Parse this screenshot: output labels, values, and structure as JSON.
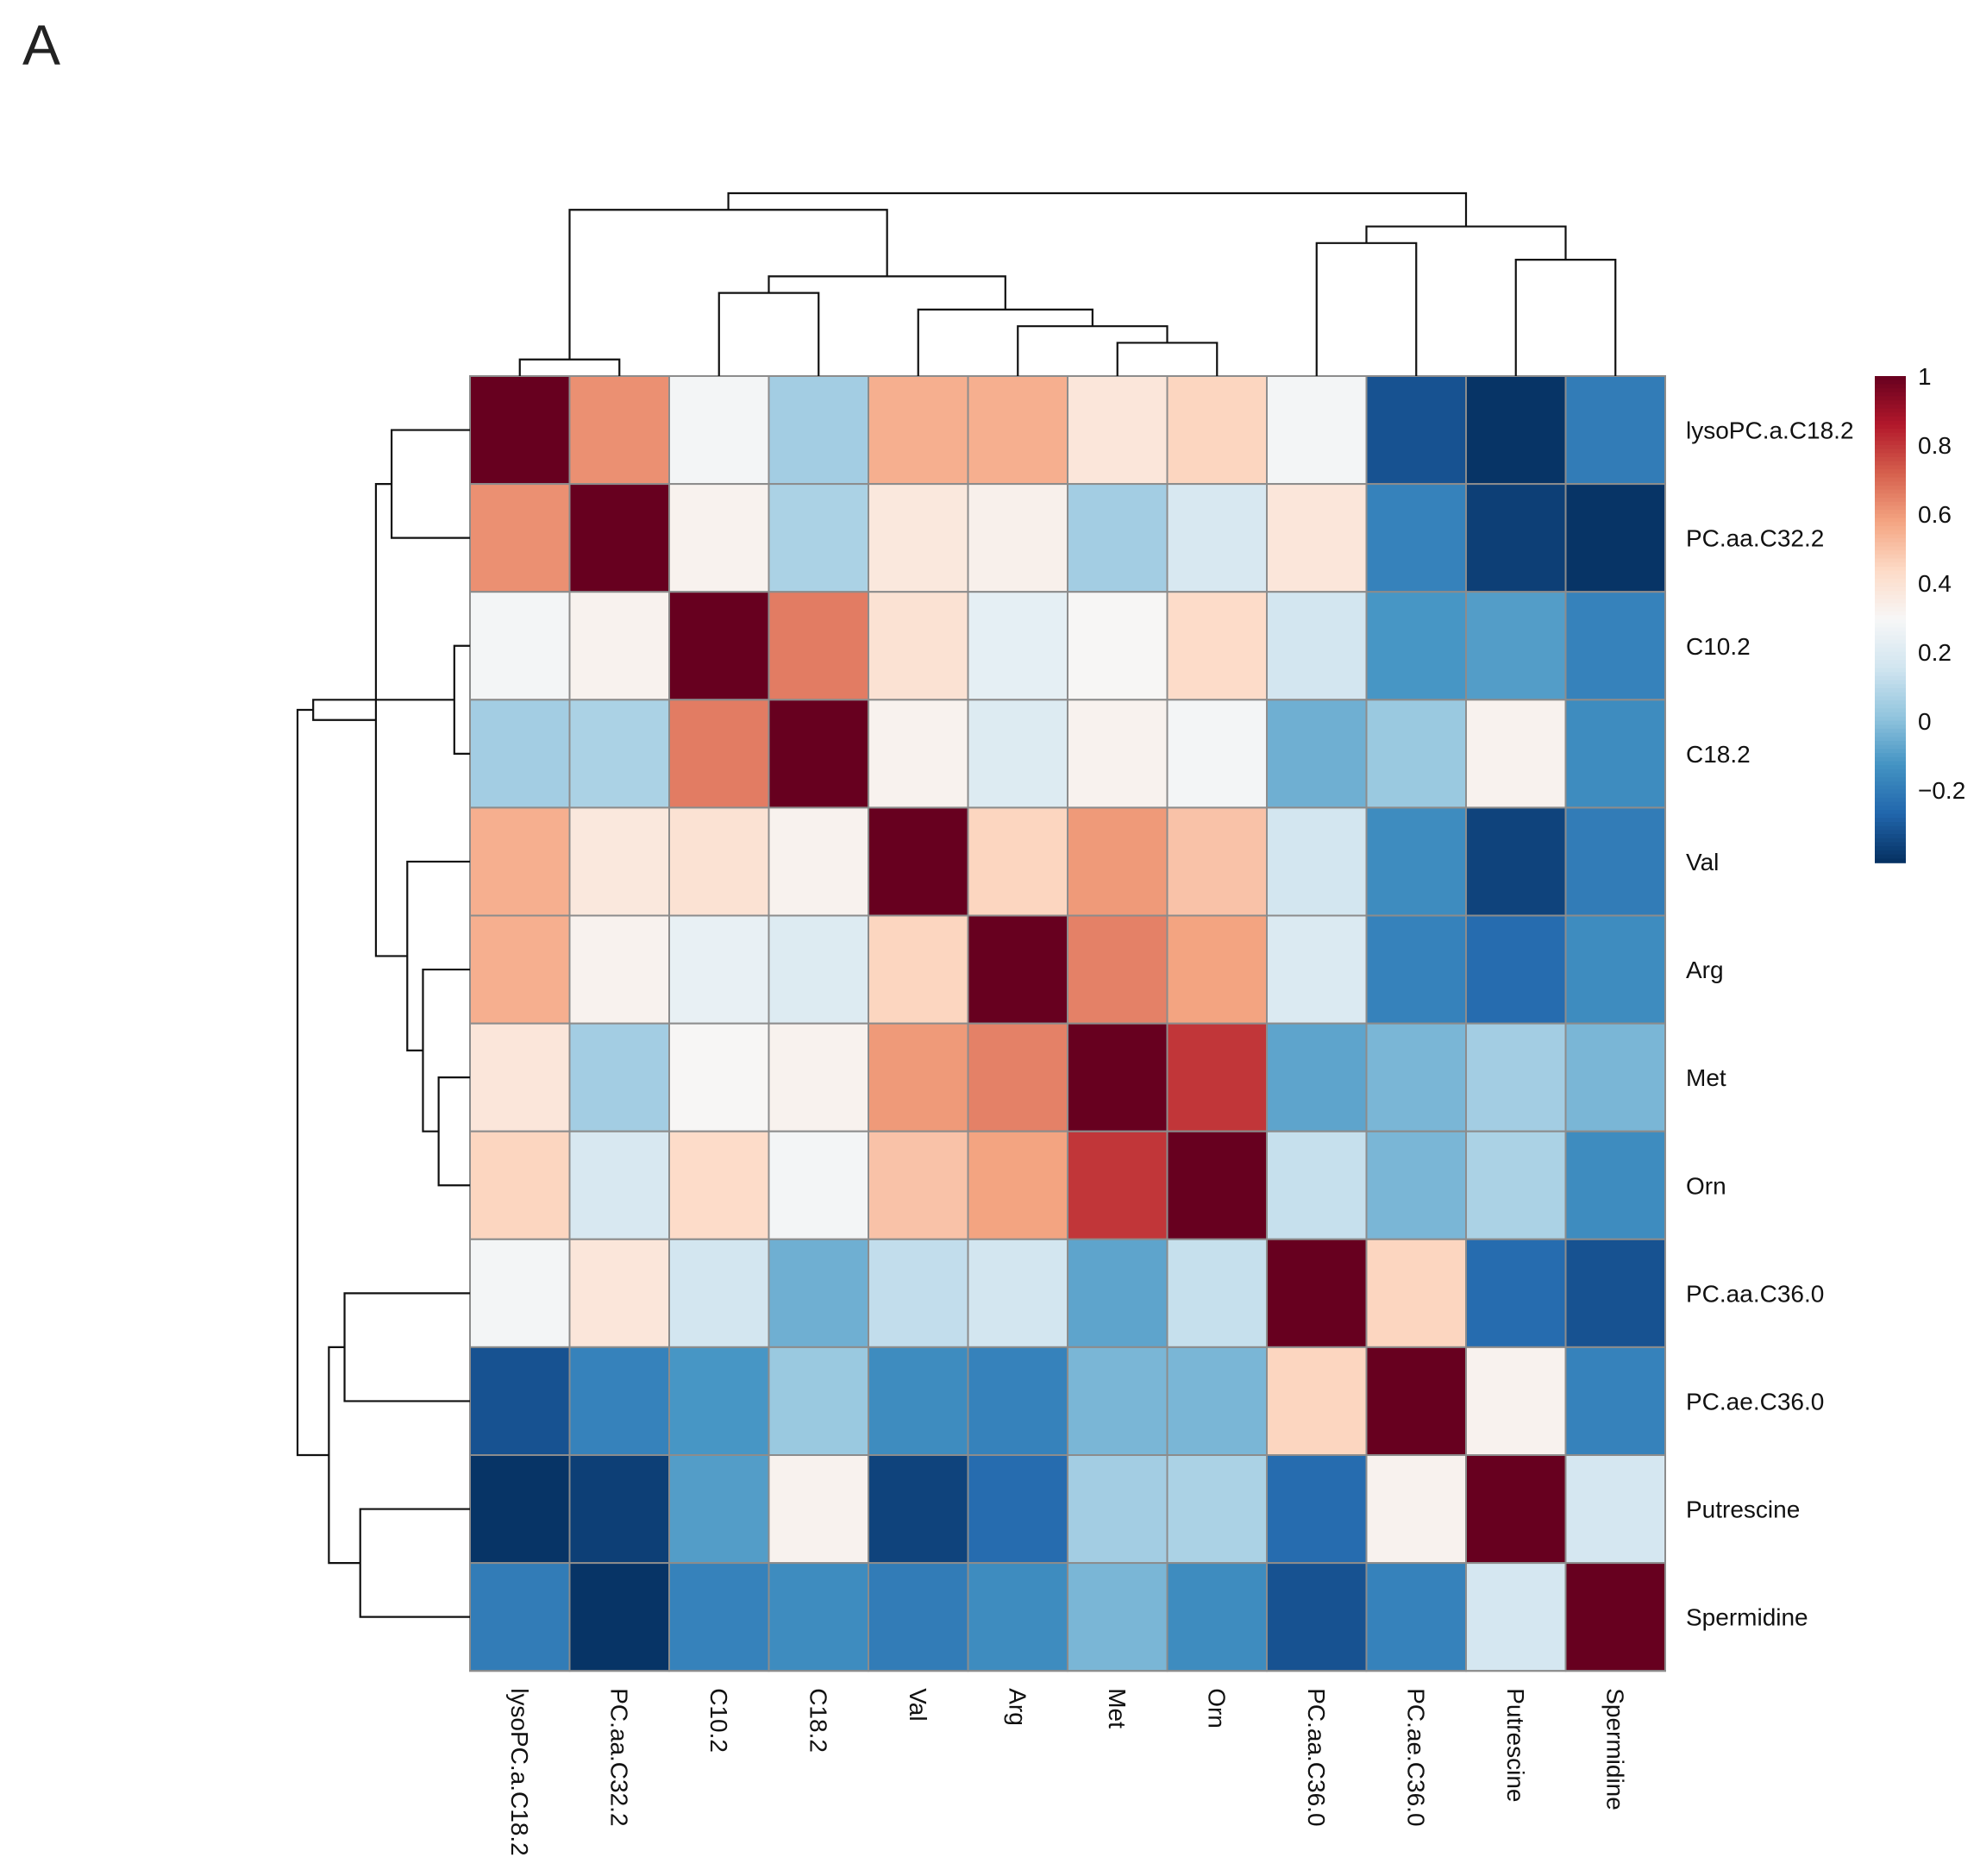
{
  "panel_label": "A",
  "chart_data": {
    "type": "heatmap",
    "title": "",
    "row_labels": [
      "lysoPC.a.C18.2",
      "PC.aa.C32.2",
      "C10.2",
      "C18.2",
      "Val",
      "Arg",
      "Met",
      "Orn",
      "PC.aa.C36.0",
      "PC.ae.C36.0",
      "Putrescine",
      "Spermidine"
    ],
    "col_labels": [
      "lysoPC.a.C18.2",
      "PC.aa.C32.2",
      "C10.2",
      "C18.2",
      "Val",
      "Arg",
      "Met",
      "Orn",
      "PC.aa.C36.0",
      "PC.ae.C36.0",
      "Putrescine",
      "Spermidine"
    ],
    "values": [
      [
        1.0,
        0.62,
        0.28,
        0.05,
        0.55,
        0.55,
        0.38,
        0.45,
        0.28,
        -0.32,
        -0.4,
        -0.2
      ],
      [
        0.62,
        1.0,
        0.32,
        0.07,
        0.37,
        0.33,
        0.05,
        0.18,
        0.38,
        -0.18,
        -0.37,
        -0.4
      ],
      [
        0.28,
        0.32,
        1.0,
        0.66,
        0.4,
        0.23,
        0.3,
        0.43,
        0.16,
        -0.12,
        -0.1,
        -0.18
      ],
      [
        0.05,
        0.07,
        0.66,
        1.0,
        0.32,
        0.2,
        0.32,
        0.28,
        -0.05,
        0.03,
        0.32,
        -0.15
      ],
      [
        0.55,
        0.37,
        0.4,
        0.32,
        1.0,
        0.45,
        0.6,
        0.5,
        0.16,
        -0.15,
        -0.36,
        -0.2
      ],
      [
        0.55,
        0.32,
        0.24,
        0.2,
        0.45,
        1.0,
        0.65,
        0.58,
        0.19,
        -0.18,
        -0.25,
        -0.15
      ],
      [
        0.38,
        0.05,
        0.3,
        0.32,
        0.6,
        0.65,
        1.0,
        0.8,
        -0.08,
        -0.03,
        0.05,
        -0.03
      ],
      [
        0.45,
        0.18,
        0.43,
        0.28,
        0.5,
        0.58,
        0.8,
        1.0,
        0.13,
        -0.03,
        0.07,
        -0.15
      ],
      [
        0.28,
        0.38,
        0.16,
        -0.05,
        0.12,
        0.16,
        -0.08,
        0.13,
        1.0,
        0.45,
        -0.25,
        -0.32
      ],
      [
        -0.32,
        -0.18,
        -0.12,
        0.03,
        -0.15,
        -0.18,
        -0.03,
        -0.03,
        0.45,
        1.0,
        0.32,
        -0.18
      ],
      [
        -0.4,
        -0.37,
        -0.1,
        0.32,
        -0.36,
        -0.25,
        0.05,
        0.07,
        -0.25,
        0.32,
        1.0,
        0.17
      ],
      [
        -0.2,
        -0.4,
        -0.18,
        -0.15,
        -0.2,
        -0.15,
        -0.03,
        -0.15,
        -0.32,
        -0.18,
        0.17,
        1.0
      ]
    ],
    "zlim": [
      -0.41,
      1.0
    ],
    "colorbar": {
      "ticks": [
        1,
        0.8,
        0.6,
        0.4,
        0.2,
        0,
        -0.2
      ],
      "tick_labels": [
        "1",
        "0.8",
        "0.6",
        "0.4",
        "0.2",
        "0",
        "−0.2"
      ]
    },
    "palette": [
      "#053061",
      "#2166ac",
      "#4393c3",
      "#92c5de",
      "#d1e5f0",
      "#f7f7f7",
      "#fddbc7",
      "#f4a582",
      "#d6604d",
      "#b2182b",
      "#67001f"
    ],
    "col_dendrogram": [
      [
        1,
        2
      ],
      [
        7,
        8
      ],
      [
        6,
        -2
      ],
      [
        5,
        -3
      ],
      [
        3,
        4
      ],
      [
        -5,
        -4
      ],
      [
        11,
        12
      ],
      [
        9,
        10
      ],
      [
        -8,
        -7
      ],
      [
        -1,
        -6
      ],
      [
        -10,
        -9
      ]
    ],
    "row_dendrogram": [
      [
        3,
        4
      ],
      [
        7,
        8
      ],
      [
        6,
        -2
      ],
      [
        5,
        -3
      ],
      [
        1,
        2
      ],
      [
        -4,
        -5
      ],
      [
        11,
        12
      ],
      [
        9,
        10
      ],
      [
        -8,
        -7
      ],
      [
        -1,
        -6
      ],
      [
        -10,
        -9
      ]
    ],
    "grid_color": "#8c8c8c",
    "legend_position": "right"
  }
}
